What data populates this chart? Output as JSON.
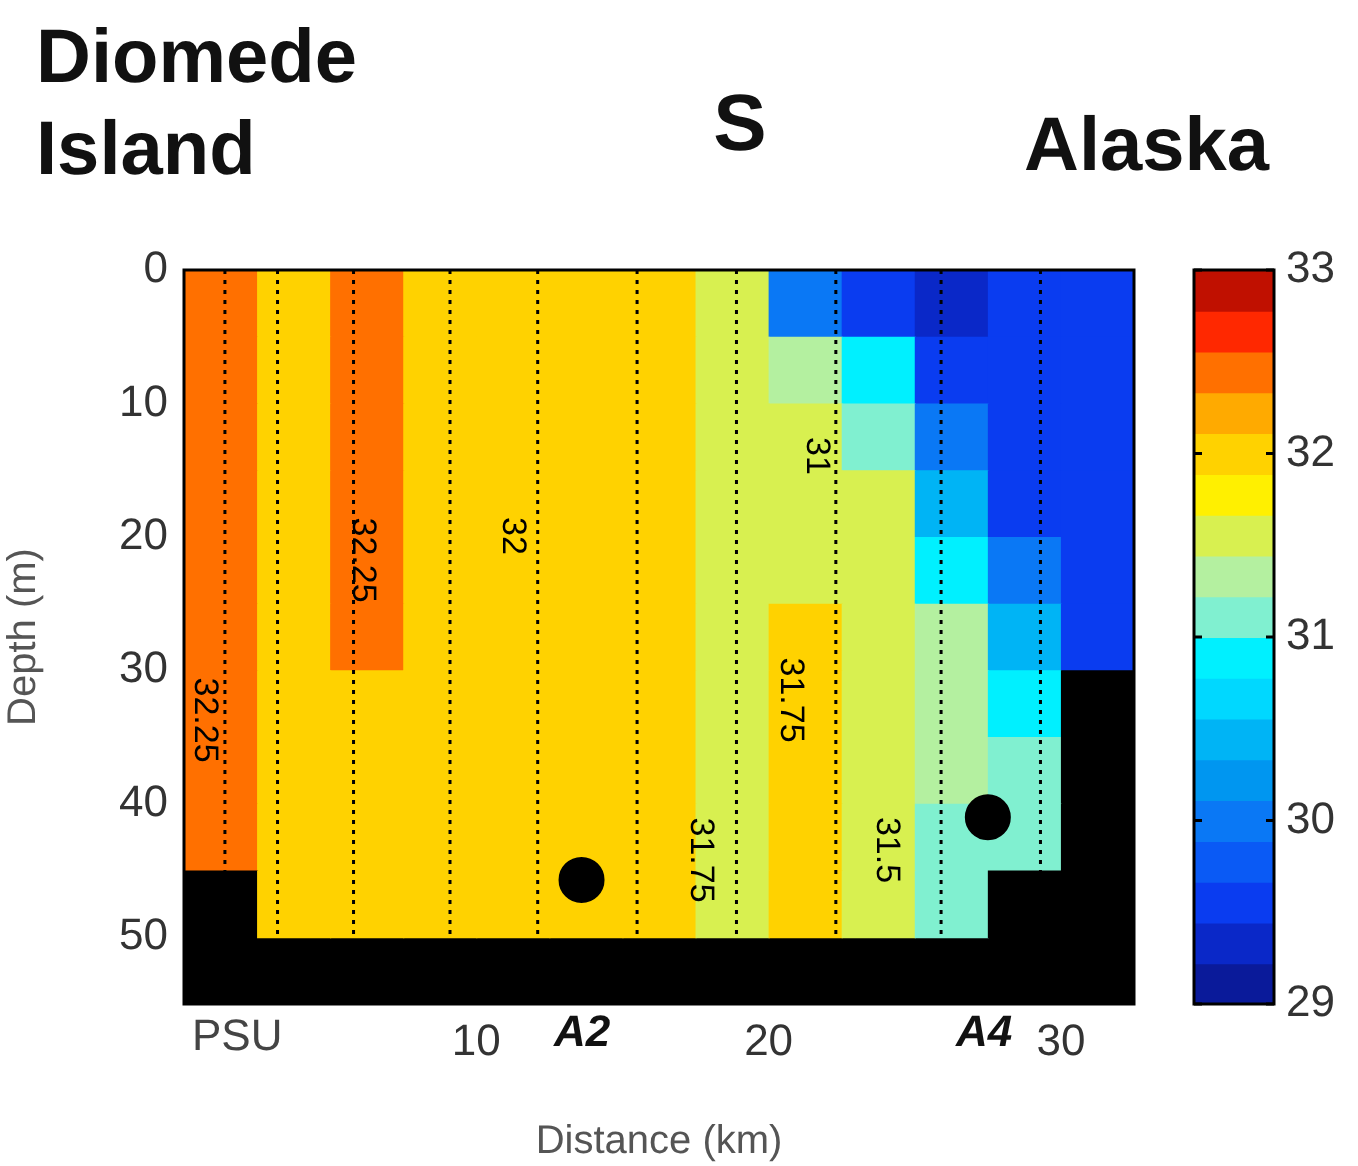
{
  "chart_data": {
    "type": "heatmap",
    "title": "S",
    "xlabel": "Distance (km)",
    "ylabel": "Depth (m)",
    "annotations": [
      "Diomede Island",
      "Alaska",
      "PSU",
      "32.25",
      "32.25",
      "32",
      "31.75",
      "31.75",
      "31.5",
      "31",
      "A2",
      "A4"
    ],
    "x": [
      1.25,
      3.75,
      6.25,
      8.75,
      11.25,
      13.75,
      16.25,
      18.75,
      21.25,
      23.75,
      26.25,
      28.75,
      31.25
    ],
    "y": [
      2.5,
      7.5,
      12.5,
      17.5,
      22.5,
      27.5,
      32.5,
      37.5,
      42.5,
      47.5
    ],
    "cells": [
      [
        32.4,
        32.1,
        32.4,
        32.1,
        31.9,
        31.9,
        31.9,
        31.6,
        30.1,
        29.6,
        29.3,
        29.6,
        29.6
      ],
      [
        32.4,
        32.1,
        32.4,
        32.1,
        31.9,
        31.9,
        31.9,
        31.6,
        31.4,
        30.9,
        29.6,
        29.6,
        29.6
      ],
      [
        32.4,
        32.1,
        32.4,
        32.1,
        32.1,
        31.9,
        31.9,
        31.6,
        31.6,
        31.1,
        30.1,
        29.6,
        29.6
      ],
      [
        32.4,
        32.1,
        32.4,
        32.1,
        32.1,
        31.9,
        31.9,
        31.6,
        31.6,
        31.6,
        30.5,
        29.6,
        29.6
      ],
      [
        32.4,
        32.1,
        32.4,
        32.1,
        32.1,
        31.9,
        31.9,
        31.6,
        31.6,
        31.6,
        30.9,
        30.1,
        29.6
      ],
      [
        32.4,
        32.1,
        32.4,
        32.1,
        32.1,
        31.9,
        31.9,
        31.6,
        31.9,
        31.6,
        31.4,
        30.5,
        29.6
      ],
      [
        32.4,
        32.1,
        32.1,
        32.1,
        32.1,
        31.9,
        31.9,
        31.6,
        31.9,
        31.6,
        31.4,
        30.9,
        null
      ],
      [
        32.4,
        32.1,
        32.1,
        32.1,
        32.1,
        31.9,
        31.9,
        31.6,
        31.9,
        31.6,
        31.4,
        31.1,
        null
      ],
      [
        32.4,
        32.1,
        32.1,
        32.1,
        32.1,
        31.9,
        31.9,
        31.6,
        31.9,
        31.6,
        31.1,
        31.1,
        null
      ],
      [
        null,
        32.1,
        32.1,
        32.1,
        32.1,
        31.9,
        31.9,
        31.6,
        31.9,
        31.6,
        31.1,
        null,
        null
      ]
    ],
    "series": [
      {
        "type": "scatter",
        "x": [
          13.6,
          27.5
        ],
        "values": [
          45.7,
          41
        ],
        "color": "#000000",
        "marker": "circle"
      }
    ],
    "ref_lines": [
      {
        "axis": "x",
        "value": 1.4,
        "color": "#000000",
        "line_style": "dotted"
      },
      {
        "axis": "x",
        "value": 3.2,
        "color": "#000000",
        "line_style": "dotted"
      },
      {
        "axis": "x",
        "value": 5.8,
        "color": "#000000",
        "line_style": "dotted"
      },
      {
        "axis": "x",
        "value": 9.1,
        "color": "#000000",
        "line_style": "dotted"
      },
      {
        "axis": "x",
        "value": 12.1,
        "color": "#000000",
        "line_style": "dotted"
      },
      {
        "axis": "x",
        "value": 15.5,
        "color": "#000000",
        "line_style": "dotted"
      },
      {
        "axis": "x",
        "value": 18.9,
        "color": "#000000",
        "line_style": "dotted"
      },
      {
        "axis": "x",
        "value": 22.3,
        "color": "#000000",
        "line_style": "dotted"
      },
      {
        "axis": "x",
        "value": 25.9,
        "color": "#000000",
        "line_style": "dotted"
      },
      {
        "axis": "x",
        "value": 29.3,
        "color": "#000000",
        "line_style": "dotted"
      }
    ],
    "xlim": [
      0,
      32.5
    ],
    "xticks": [
      10,
      20,
      30
    ],
    "ylim": [
      55,
      0
    ],
    "yticks": [
      0,
      10,
      20,
      30,
      40,
      50
    ],
    "clim": [
      29,
      33
    ],
    "cticks": [
      29,
      30,
      31,
      32,
      33
    ]
  }
}
